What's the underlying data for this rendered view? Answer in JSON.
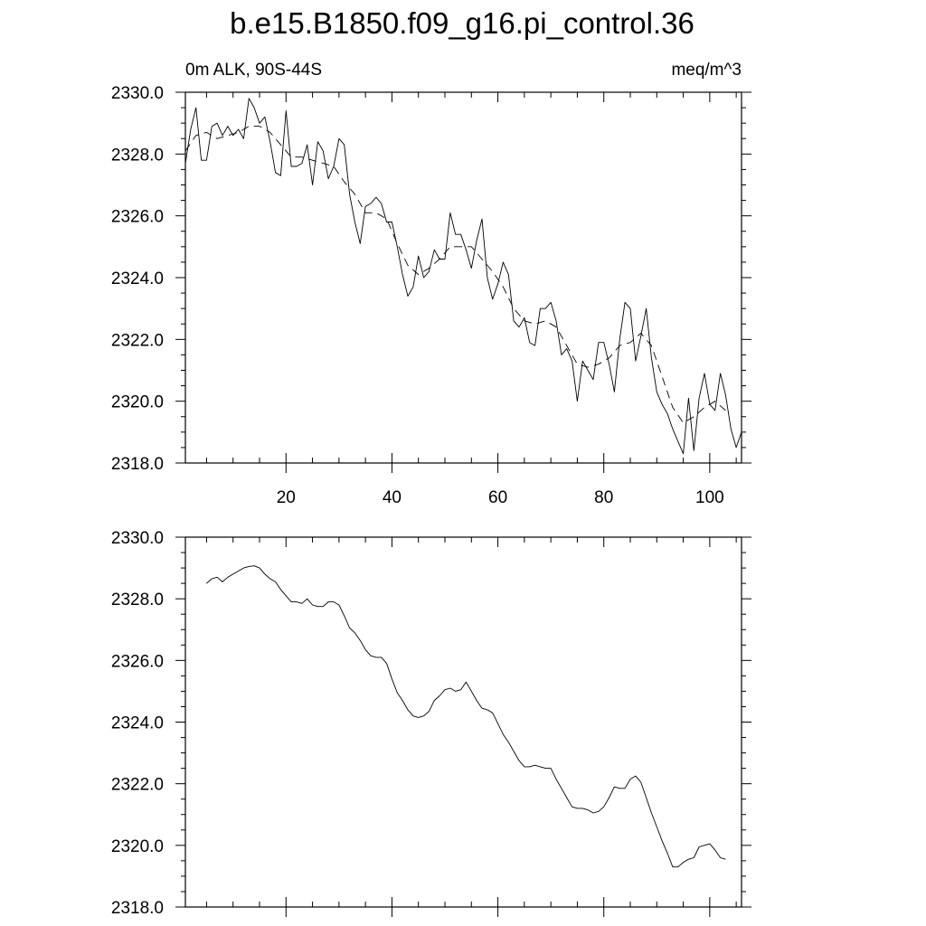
{
  "title": "b.e15.B1850.f09_g16.pi_control.36",
  "chart_data": [
    {
      "type": "line",
      "title": "",
      "subtitle_left": "0m ALK, 90S-44S",
      "subtitle_right": "meq/m^3",
      "xlabel": "",
      "ylabel": "",
      "xlim": [
        1,
        106
      ],
      "ylim": [
        2318.0,
        2330.0
      ],
      "xticks": [
        20,
        40,
        60,
        80,
        100
      ],
      "xtick_labels": [
        "20",
        "40",
        "60",
        "80",
        "100"
      ],
      "yticks": [
        2318.0,
        2320.0,
        2322.0,
        2324.0,
        2326.0,
        2328.0,
        2330.0
      ],
      "ytick_labels": [
        "2318.0",
        "2320.0",
        "2322.0",
        "2324.0",
        "2326.0",
        "2328.0",
        "2330.0"
      ],
      "grid": false,
      "series": [
        {
          "style": "solid",
          "x": [
            1,
            2,
            3,
            4,
            5,
            6,
            7,
            8,
            9,
            10,
            11,
            12,
            13,
            14,
            15,
            16,
            17,
            18,
            19,
            20,
            21,
            22,
            23,
            24,
            25,
            26,
            27,
            28,
            29,
            30,
            31,
            32,
            33,
            34,
            35,
            36,
            37,
            38,
            39,
            40,
            41,
            42,
            43,
            44,
            45,
            46,
            47,
            48,
            49,
            50,
            51,
            52,
            53,
            54,
            55,
            56,
            57,
            58,
            59,
            60,
            61,
            62,
            63,
            64,
            65,
            66,
            67,
            68,
            69,
            70,
            71,
            72,
            73,
            74,
            75,
            76,
            77,
            78,
            79,
            80,
            81,
            82,
            83,
            84,
            85,
            86,
            87,
            88,
            89,
            90,
            91,
            92,
            93,
            94,
            95,
            96,
            97,
            98,
            99,
            100,
            101,
            102,
            103,
            104,
            105,
            106
          ],
          "y": [
            2327.7,
            2328.8,
            2329.5,
            2327.8,
            2327.8,
            2328.9,
            2329.0,
            2328.6,
            2328.9,
            2328.6,
            2328.8,
            2328.5,
            2329.8,
            2329.5,
            2329.0,
            2329.2,
            2328.4,
            2327.4,
            2327.3,
            2329.4,
            2327.6,
            2327.6,
            2327.7,
            2328.3,
            2327.0,
            2328.4,
            2328.1,
            2327.2,
            2327.6,
            2328.5,
            2328.3,
            2326.7,
            2325.8,
            2325.1,
            2326.3,
            2326.4,
            2326.6,
            2326.4,
            2325.8,
            2325.8,
            2325.0,
            2324.1,
            2323.4,
            2323.7,
            2324.7,
            2324.0,
            2324.2,
            2324.9,
            2324.6,
            2324.6,
            2326.1,
            2325.4,
            2325.4,
            2324.9,
            2324.3,
            2325.2,
            2325.9,
            2324.0,
            2323.3,
            2323.8,
            2324.5,
            2324.1,
            2322.6,
            2322.4,
            2322.7,
            2321.9,
            2321.8,
            2323.0,
            2323.0,
            2323.2,
            2322.6,
            2321.5,
            2321.7,
            2321.3,
            2320.0,
            2321.3,
            2321.0,
            2320.7,
            2321.9,
            2321.9,
            2321.2,
            2320.3,
            2322.0,
            2323.2,
            2323.0,
            2321.3,
            2322.1,
            2323.0,
            2321.4,
            2320.3,
            2319.9,
            2319.6,
            2319.1,
            2318.7,
            2318.3,
            2320.1,
            2318.4,
            2320.1,
            2320.9,
            2319.9,
            2319.7,
            2320.9,
            2320.2,
            2319.1,
            2318.5,
            2319.0
          ]
        },
        {
          "style": "dashed",
          "x": [
            1,
            3,
            5,
            7,
            9,
            11,
            13,
            15,
            17,
            19,
            21,
            23,
            25,
            27,
            29,
            31,
            33,
            35,
            37,
            39,
            41,
            43,
            45,
            47,
            49,
            51,
            53,
            55,
            57,
            59,
            61,
            63,
            65,
            67,
            69,
            71,
            73,
            75,
            77,
            79,
            81,
            83,
            85,
            87,
            89,
            91,
            93,
            95,
            97,
            99,
            101,
            103
          ],
          "y": [
            2328.1,
            2328.6,
            2328.7,
            2328.5,
            2328.6,
            2328.7,
            2328.9,
            2328.9,
            2328.7,
            2328.3,
            2327.9,
            2327.9,
            2327.8,
            2327.7,
            2327.6,
            2327.1,
            2326.7,
            2326.1,
            2326.1,
            2325.9,
            2325.1,
            2324.4,
            2324.1,
            2324.3,
            2324.6,
            2325.0,
            2325.0,
            2325.0,
            2324.6,
            2324.2,
            2323.7,
            2323.0,
            2322.6,
            2322.5,
            2322.6,
            2322.4,
            2321.8,
            2321.2,
            2321.1,
            2321.2,
            2321.4,
            2321.8,
            2321.9,
            2322.2,
            2321.8,
            2320.8,
            2319.8,
            2319.3,
            2319.5,
            2319.8,
            2320.0,
            2319.7
          ]
        }
      ]
    },
    {
      "type": "line",
      "title": "",
      "xlabel": "",
      "ylabel": "",
      "xlim": [
        1,
        106
      ],
      "ylim": [
        2318.0,
        2330.0
      ],
      "xticks": [
        20,
        40,
        60,
        80,
        100
      ],
      "yticks": [
        2318.0,
        2320.0,
        2322.0,
        2324.0,
        2326.0,
        2328.0,
        2330.0
      ],
      "ytick_labels": [
        "2318.0",
        "2320.0",
        "2322.0",
        "2324.0",
        "2326.0",
        "2328.0",
        "2330.0"
      ],
      "grid": false,
      "series": [
        {
          "style": "solid",
          "x": [
            5,
            6,
            7,
            8,
            9,
            10,
            11,
            12,
            13,
            14,
            15,
            16,
            17,
            18,
            19,
            20,
            21,
            22,
            23,
            24,
            25,
            26,
            27,
            28,
            29,
            30,
            31,
            32,
            33,
            34,
            35,
            36,
            37,
            38,
            39,
            40,
            41,
            42,
            43,
            44,
            45,
            46,
            47,
            48,
            49,
            50,
            51,
            52,
            53,
            54,
            55,
            56,
            57,
            58,
            59,
            60,
            61,
            62,
            63,
            64,
            65,
            66,
            67,
            68,
            69,
            70,
            71,
            72,
            73,
            74,
            75,
            76,
            77,
            78,
            79,
            80,
            81,
            82,
            83,
            84,
            85,
            86,
            87,
            88,
            89,
            90,
            91,
            92,
            93,
            94,
            95,
            96,
            97,
            98,
            99,
            100,
            101,
            102,
            103
          ],
          "y": [
            2328.5,
            2328.65,
            2328.7,
            2328.55,
            2328.7,
            2328.8,
            2328.9,
            2329.0,
            2329.05,
            2329.07,
            2329.0,
            2328.8,
            2328.65,
            2328.55,
            2328.3,
            2328.1,
            2327.9,
            2327.9,
            2327.85,
            2328.0,
            2327.8,
            2327.75,
            2327.75,
            2327.9,
            2327.9,
            2327.8,
            2327.45,
            2327.05,
            2326.9,
            2326.65,
            2326.35,
            2326.15,
            2326.1,
            2326.1,
            2325.9,
            2325.4,
            2324.95,
            2324.7,
            2324.4,
            2324.2,
            2324.15,
            2324.2,
            2324.35,
            2324.7,
            2324.85,
            2325.05,
            2325.1,
            2325.0,
            2325.05,
            2325.3,
            2325.0,
            2324.7,
            2324.45,
            2324.4,
            2324.3,
            2323.95,
            2323.6,
            2323.35,
            2323.05,
            2322.75,
            2322.55,
            2322.55,
            2322.6,
            2322.55,
            2322.5,
            2322.5,
            2322.15,
            2321.85,
            2321.55,
            2321.25,
            2321.2,
            2321.2,
            2321.15,
            2321.05,
            2321.1,
            2321.25,
            2321.55,
            2321.9,
            2321.85,
            2321.85,
            2322.15,
            2322.25,
            2322.05,
            2321.55,
            2321.05,
            2320.6,
            2320.15,
            2319.75,
            2319.3,
            2319.3,
            2319.45,
            2319.55,
            2319.6,
            2319.95,
            2320.0,
            2320.05,
            2319.85,
            2319.6,
            2319.55
          ]
        }
      ]
    }
  ]
}
